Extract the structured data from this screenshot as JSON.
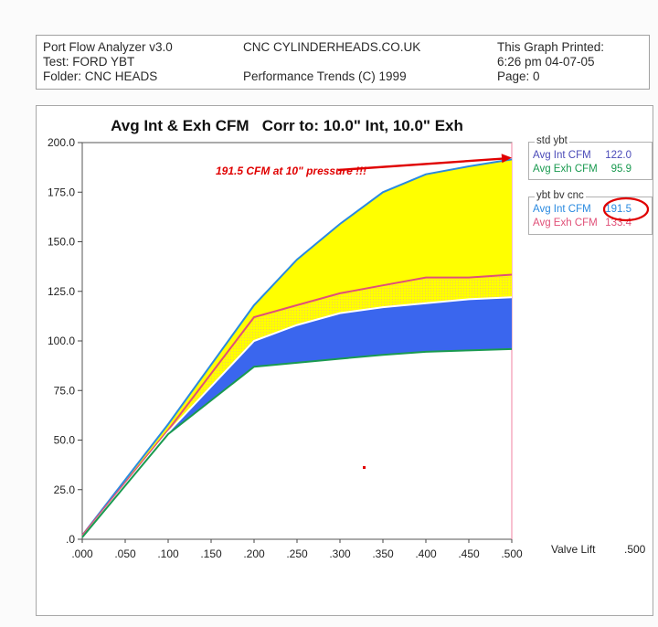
{
  "header": {
    "app": "Port Flow Analyzer v3.0",
    "test": "Test: FORD YBT",
    "folder": "Folder: CNC HEADS",
    "site": "CNC CYLINDERHEADS.CO.UK",
    "copyright": "Performance Trends (C) 1999",
    "printed_label": "This Graph Printed:",
    "printed_time": "6:26 pm 04-07-05",
    "page": "Page: 0"
  },
  "colors": {
    "yellow": "#ffff00",
    "blue_fill": "#3a66ee",
    "int_line": "#2a8ae0",
    "exh_line": "#e05078",
    "std_exh_line": "#1a9a50",
    "std_int_line": "#6a6ad0",
    "annotation": "#e00000"
  },
  "chart_data": {
    "type": "line",
    "title": "Avg Int & Exh CFM   Corr to: 10.0\" Int, 10.0\" Exh",
    "xlabel": "Valve Lift",
    "xlabel_value": ".500",
    "ylim": [
      0,
      200
    ],
    "xlim": [
      0,
      0.5
    ],
    "x_ticks": [
      ".000",
      ".050",
      ".100",
      ".150",
      ".200",
      ".250",
      ".300",
      ".350",
      ".400",
      ".450",
      ".500"
    ],
    "y_ticks": [
      "200.0",
      "175.0",
      "150.0",
      "125.0",
      "100.0",
      "75.0",
      "50.0",
      "25.0",
      ".0"
    ],
    "x": [
      0,
      0.1,
      0.2,
      0.25,
      0.3,
      0.35,
      0.4,
      0.45,
      0.5
    ],
    "series": [
      {
        "name": "ybt bv cnc Avg Int CFM",
        "values": [
          2,
          58,
          118,
          141,
          159,
          175,
          184,
          188,
          191.5
        ]
      },
      {
        "name": "ybt bv cnc Avg Exh CFM",
        "values": [
          2,
          55,
          112,
          118,
          124,
          128,
          132,
          132,
          133.4
        ]
      },
      {
        "name": "std ybt Avg Int CFM",
        "values": [
          1,
          54,
          100,
          108,
          114,
          117,
          119,
          121,
          122.0
        ]
      },
      {
        "name": "std ybt Avg Exh CFM",
        "values": [
          1,
          53,
          87,
          89,
          91,
          93,
          94.5,
          95.2,
          95.9
        ]
      }
    ],
    "annotation": "191.5 CFM at 10\" pressure !!!",
    "legend": [
      {
        "group": "std ybt",
        "items": [
          {
            "label": "Avg Int CFM",
            "value": "122.0"
          },
          {
            "label": "Avg Exh CFM",
            "value": "95.9"
          }
        ]
      },
      {
        "group": "ybt bv cnc",
        "items": [
          {
            "label": "Avg Int CFM",
            "value": "191.5"
          },
          {
            "label": "Avg Exh CFM",
            "value": "133.4"
          }
        ]
      }
    ]
  }
}
